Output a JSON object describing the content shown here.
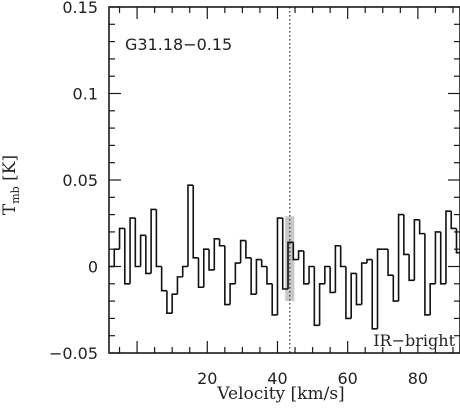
{
  "chart_data": {
    "type": "line",
    "style": "histogram-step",
    "title": "",
    "source_label": "G31.18−0.15",
    "condition_label": "IR−bright",
    "xlabel": "Velocity [km/s]",
    "ylabel_main": "T",
    "ylabel_sub": "mb",
    "ylabel_unit": "[K]",
    "xlim": [
      -8,
      92
    ],
    "ylim": [
      -0.05,
      0.15
    ],
    "x_ticks": [
      20,
      40,
      60,
      80
    ],
    "x_tick_labels": [
      "20",
      "40",
      "60",
      "80"
    ],
    "y_ticks": [
      -0.05,
      0,
      0.05,
      0.1,
      0.15
    ],
    "y_tick_labels": [
      "−0.05",
      "0",
      "0.05",
      "0.1",
      "0.15"
    ],
    "vertical_marker_x": 43.5,
    "shaded_range": [
      42.2,
      44.8
    ],
    "grid": false,
    "series": [
      {
        "x": [
          -8,
          -6.5,
          -5,
          -3.5,
          -2,
          -0.5,
          1,
          2.5,
          4,
          5.5,
          7,
          8.5,
          10,
          11.5,
          13,
          14.5,
          16,
          17.5,
          19,
          20.5,
          22,
          23.5,
          25,
          26.5,
          28,
          29.5,
          31,
          32.5,
          34,
          35.5,
          37,
          38.5,
          40,
          41.5,
          43,
          44.5,
          46,
          47.5,
          49,
          50.5,
          52,
          53.5,
          55,
          56.5,
          58,
          59.5,
          61,
          62.5,
          64,
          65.5,
          67,
          68.5,
          70,
          71.5,
          73,
          74.5,
          76,
          77.5,
          79,
          80.5,
          82,
          83.5,
          85,
          86.5,
          88,
          89.5,
          91
        ],
        "values": [
          0.0,
          0.01,
          0.022,
          -0.01,
          0.028,
          0.0,
          0.018,
          -0.004,
          0.033,
          0.0,
          -0.014,
          -0.027,
          -0.016,
          -0.006,
          0.0,
          0.047,
          0.005,
          -0.012,
          0.01,
          -0.002,
          0.016,
          0.012,
          -0.022,
          -0.01,
          0.002,
          0.015,
          0.005,
          -0.016,
          0.004,
          0.0,
          -0.01,
          -0.028,
          0.028,
          -0.013,
          0.014,
          0.004,
          0.009,
          -0.01,
          0.0,
          -0.034,
          -0.01,
          0.0,
          -0.015,
          0.012,
          0.0,
          -0.03,
          -0.004,
          -0.022,
          0.002,
          0.004,
          -0.036,
          0.01,
          0.01,
          -0.005,
          -0.02,
          0.03,
          0.007,
          -0.008,
          0.027,
          0.019,
          -0.028,
          -0.01,
          0.02,
          -0.01,
          0.032,
          0.022,
          0.008
        ]
      }
    ]
  }
}
